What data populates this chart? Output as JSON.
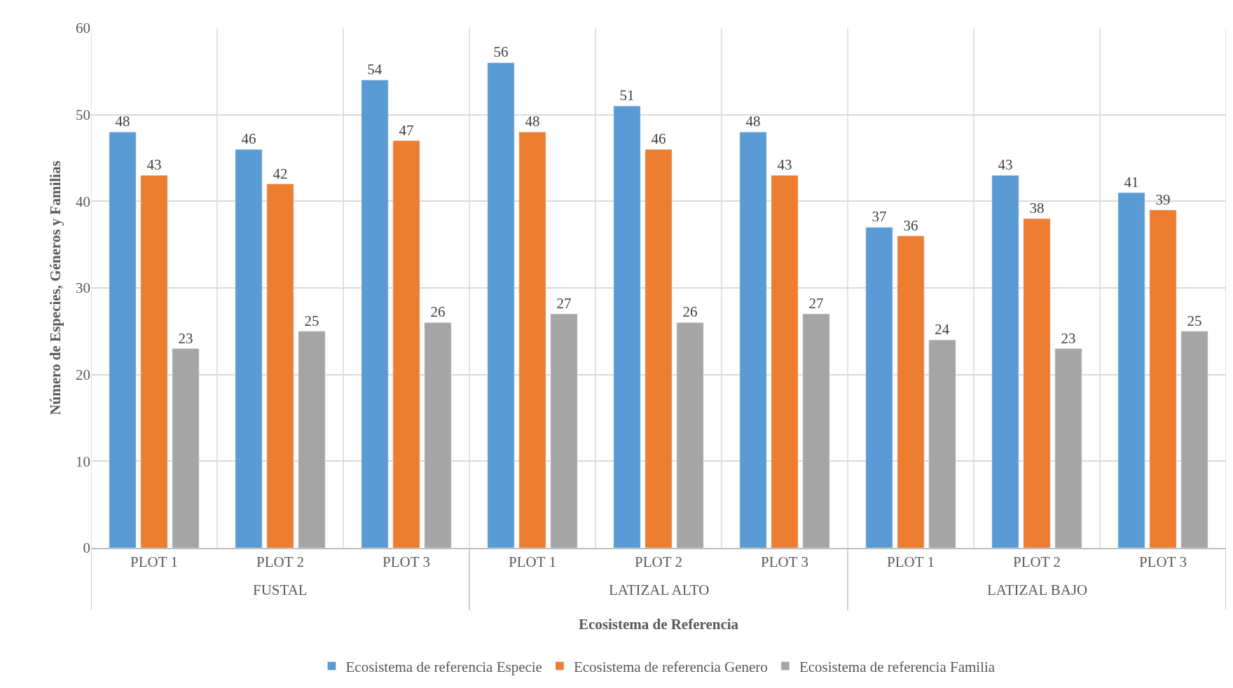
{
  "chart_data": {
    "type": "bar",
    "xlabel": "Ecosistema de Referencia",
    "ylabel": "Número de Especies, Géneros y Familias",
    "categories": [
      "PLOT 1",
      "PLOT 2",
      "PLOT 3",
      "PLOT 1",
      "PLOT 2",
      "PLOT 3",
      "PLOT 1",
      "PLOT 2",
      "PLOT 3"
    ],
    "annotations": [
      "FUSTAL",
      "LATIZAL ALTO",
      "LATIZAL BAJO"
    ],
    "series": [
      {
        "name": "Ecosistema de referencia Especie",
        "color": "#5b9bd5",
        "values": [
          48,
          46,
          54,
          56,
          51,
          48,
          37,
          43,
          41
        ]
      },
      {
        "name": "Ecosistema de referencia Genero",
        "color": "#ed7d31",
        "values": [
          43,
          42,
          47,
          48,
          46,
          43,
          36,
          38,
          39
        ]
      },
      {
        "name": "Ecosistema de referencia Familia",
        "color": "#a5a5a5",
        "values": [
          23,
          25,
          26,
          27,
          26,
          27,
          24,
          23,
          25
        ]
      }
    ],
    "ylim": [
      0,
      60
    ],
    "yticks": [
      0,
      10,
      20,
      30,
      40,
      50,
      60
    ],
    "grid": true,
    "legend": "bottom",
    "data_labels": true
  }
}
